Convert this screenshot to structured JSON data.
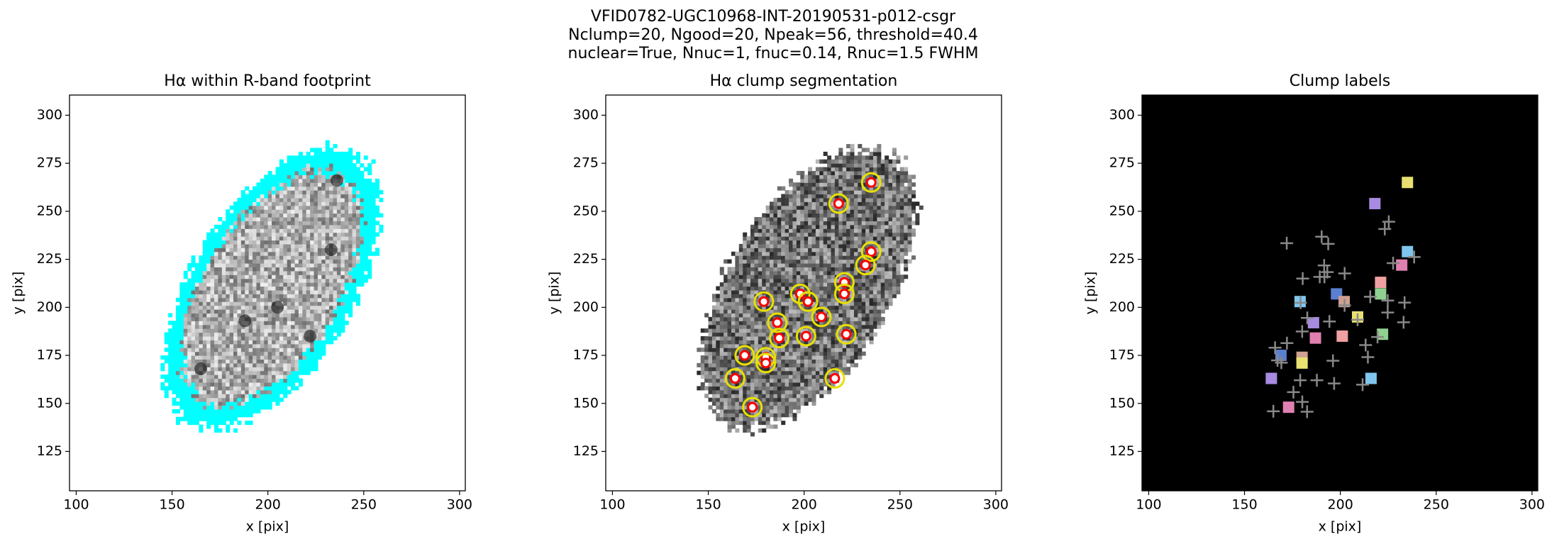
{
  "suptitle": [
    "VFID0782-UGC10968-INT-20190531-p012-csgr",
    "Nclump=20, Ngood=20, Npeak=56, threshold=40.4",
    "nuclear=True, Nnuc=1, fnuc=0.14, Rnuc=1.5 FWHM"
  ],
  "chart_data": [
    {
      "type": "image",
      "title": "Hα within R-band footprint",
      "xlabel": "x [pix]",
      "ylabel": "y [pix]",
      "xlim": [
        96.5,
        303
      ],
      "ylim": [
        104.5,
        310.5
      ],
      "xticks": [
        100,
        150,
        200,
        250,
        300
      ],
      "yticks": [
        125,
        150,
        175,
        200,
        225,
        250,
        275,
        300
      ],
      "color": "#00ffff"
    },
    {
      "type": "image",
      "title": "Hα clump segmentation",
      "xlabel": "x [pix]",
      "ylabel": "y [pix]",
      "xlim": [
        96.5,
        303
      ],
      "ylim": [
        104.5,
        310.5
      ],
      "xticks": [
        100,
        150,
        200,
        250,
        300
      ],
      "yticks": [
        125,
        150,
        175,
        200,
        225,
        250,
        275,
        300
      ],
      "color": "#ff0000",
      "x": [
        235,
        218,
        235,
        232,
        221,
        221,
        198,
        202,
        209,
        186,
        179,
        187,
        201,
        222,
        169,
        180,
        180,
        164,
        216,
        173
      ],
      "y": [
        265,
        254,
        229,
        222,
        213,
        207,
        207,
        203,
        195,
        192,
        203,
        184,
        185,
        186,
        175,
        174,
        171,
        163,
        163,
        148
      ]
    },
    {
      "type": "image",
      "title": "Clump labels",
      "xlabel": "x [pix]",
      "ylabel": "y [pix]",
      "xlim": [
        96.5,
        303
      ],
      "ylim": [
        104.5,
        310.5
      ],
      "xticks": [
        100,
        150,
        200,
        250,
        300
      ],
      "yticks": [
        125,
        150,
        175,
        200,
        225,
        250,
        275,
        300
      ],
      "color": "#000000"
    }
  ]
}
